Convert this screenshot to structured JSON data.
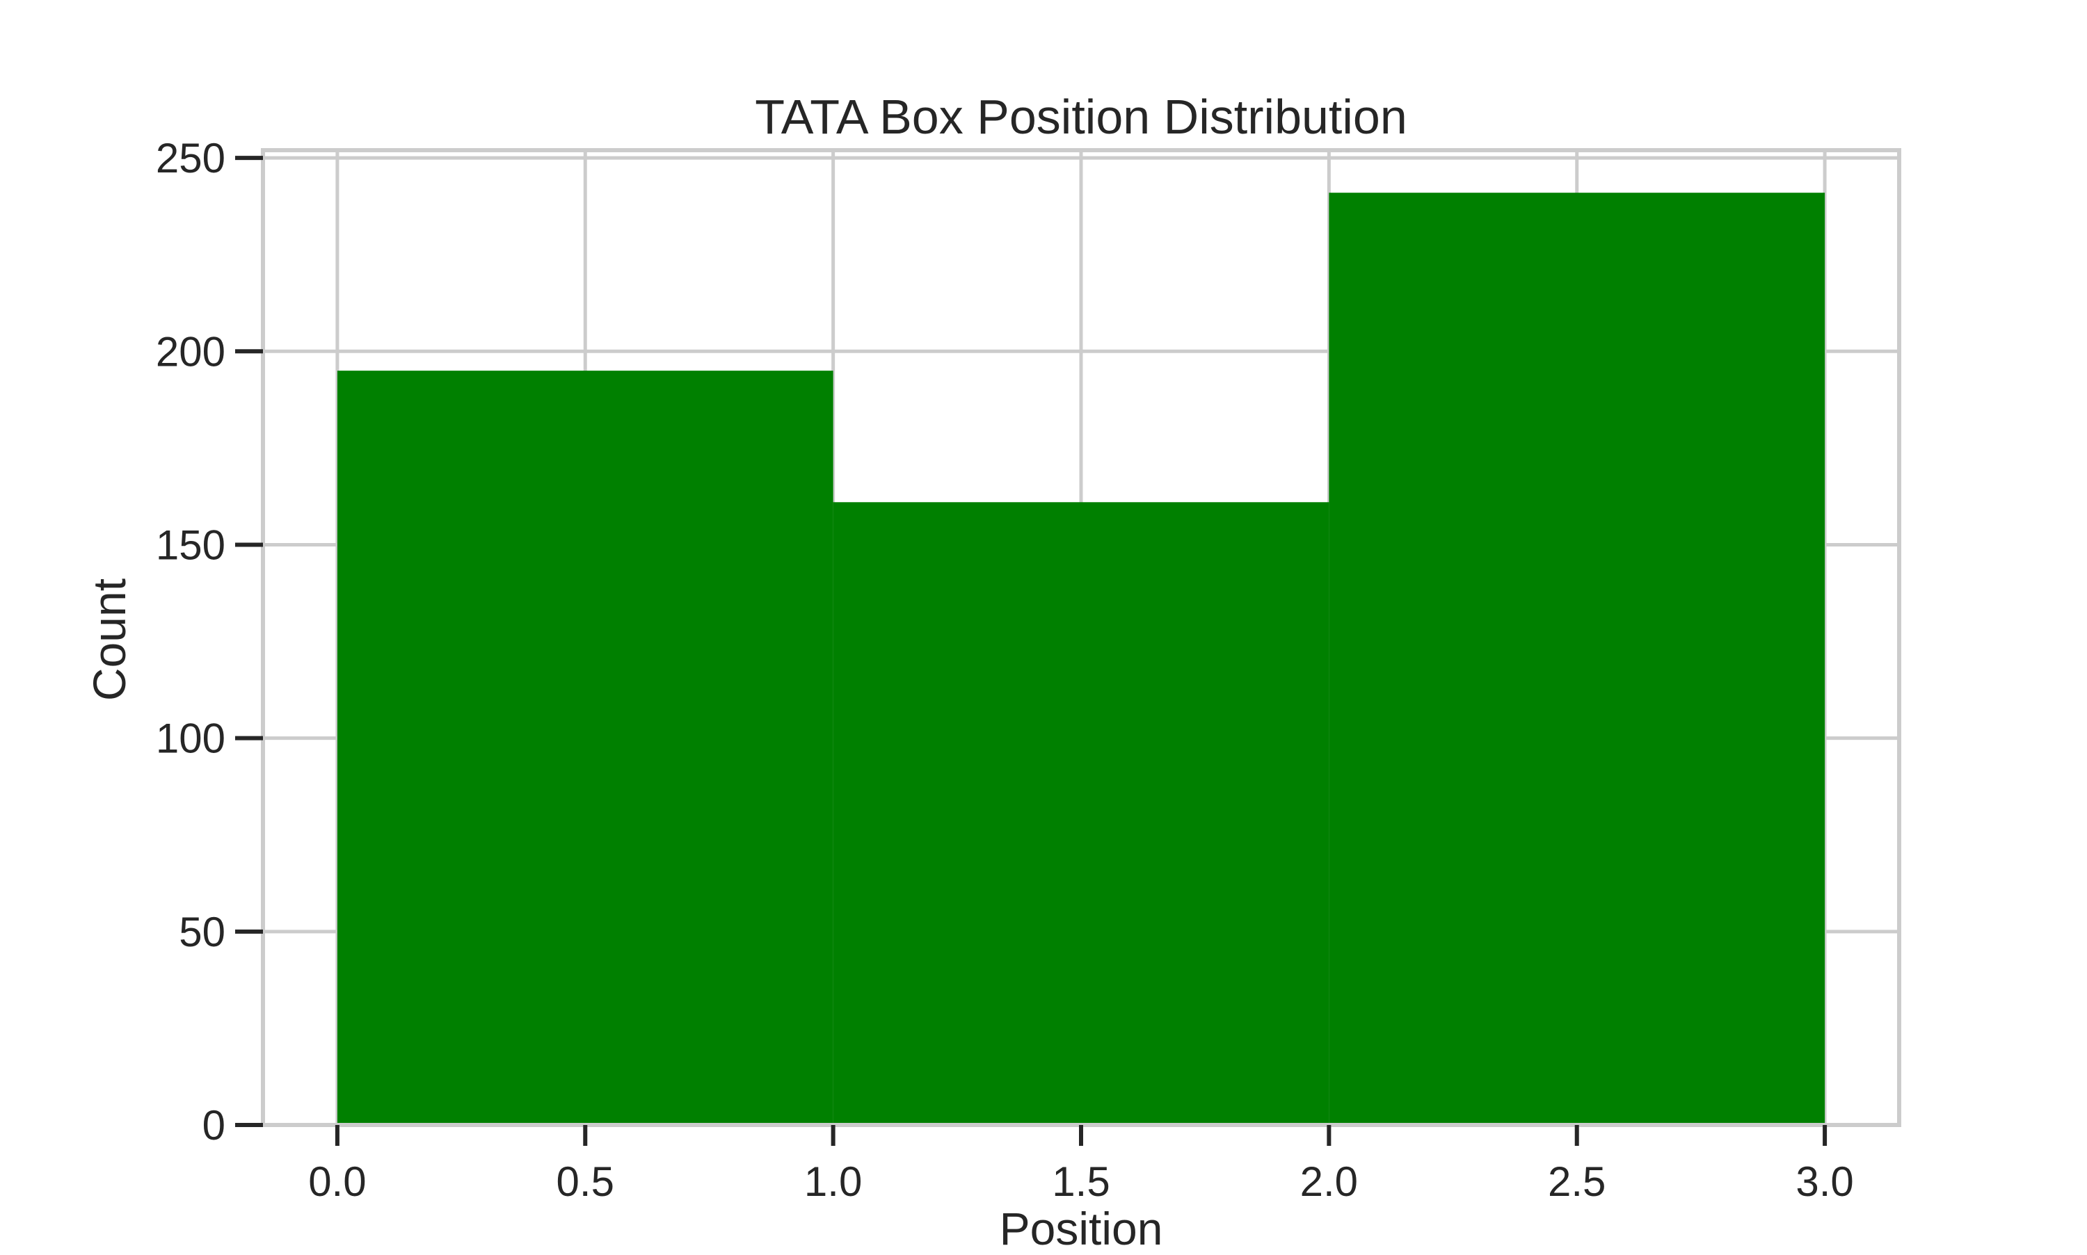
{
  "chart_data": {
    "type": "bar",
    "title": "TATA Box Position Distribution",
    "xlabel": "Position",
    "ylabel": "Count",
    "xlim": [
      -0.15,
      3.15
    ],
    "ylim": [
      0,
      252
    ],
    "xticks": [
      "0.0",
      "0.5",
      "1.0",
      "1.5",
      "2.0",
      "2.5",
      "3.0"
    ],
    "yticks": [
      "0",
      "50",
      "100",
      "150",
      "200",
      "250"
    ],
    "grid": true,
    "bins": [
      {
        "x0": 0,
        "x1": 1,
        "value": 195
      },
      {
        "x0": 1,
        "x1": 2,
        "value": 161
      },
      {
        "x0": 2,
        "x1": 3,
        "value": 241
      }
    ],
    "colors": {
      "bar": "#008000",
      "grid": "#cccccc",
      "spine": "#cccccc",
      "tick": "#262626"
    }
  }
}
